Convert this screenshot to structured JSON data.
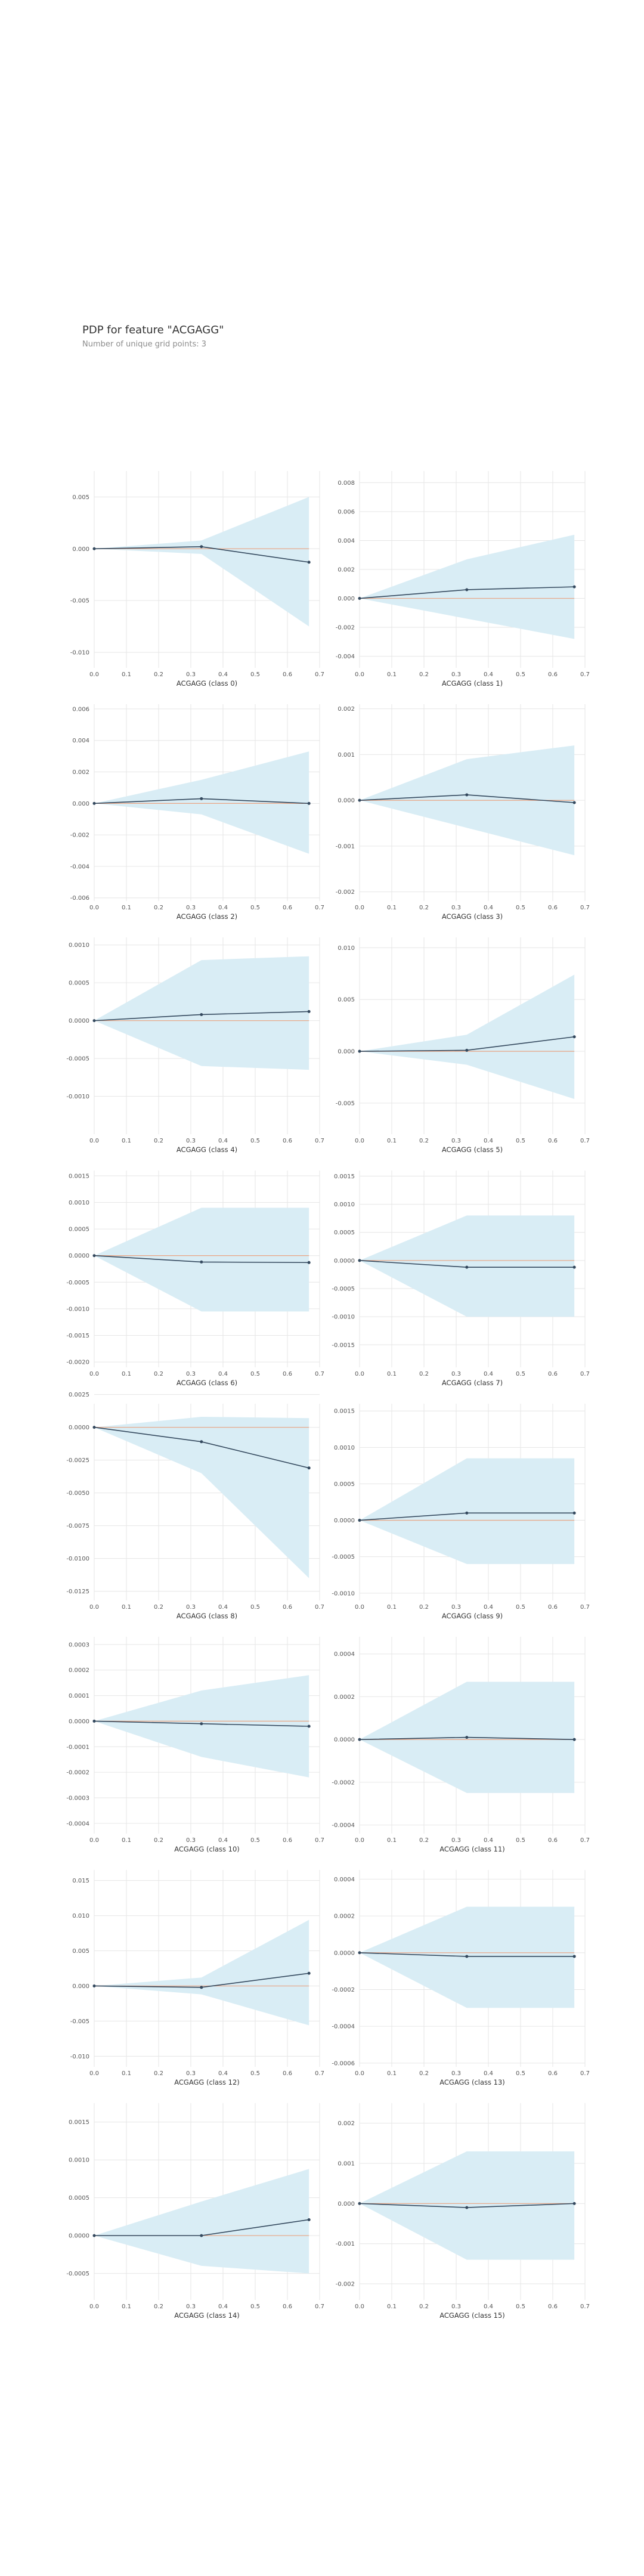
{
  "header": {
    "title": "PDP for feature \"ACGAGG\"",
    "subtitle": "Number of unique grid points: 3"
  },
  "colors": {
    "band": "#d9edf5",
    "line": "#34495e",
    "baseline": "#e8aa8c",
    "grid": "#e6e6e6",
    "tick_text": "#555555",
    "label_text": "#333333"
  },
  "chart_data": [
    {
      "type": "line",
      "xlabel": "ACGAGG (class 0)",
      "x": [
        0,
        0.333,
        0.667
      ],
      "xticks": [
        "0.0",
        "0.1",
        "0.2",
        "0.3",
        "0.4",
        "0.5",
        "0.6",
        "0.7"
      ],
      "xlim": [
        0,
        0.7
      ],
      "ylim": [
        -0.0115,
        0.0075
      ],
      "yticks": [
        -0.01,
        -0.005,
        0,
        0.005
      ],
      "yticklabels": [
        "-0.010",
        "-0.005",
        "0.000",
        "0.005"
      ],
      "series": [
        {
          "values": [
            0,
            0.0002,
            -0.0013
          ],
          "upper": [
            0,
            0.0008,
            0.005
          ],
          "lower": [
            0,
            -0.0005,
            -0.0075
          ]
        }
      ]
    },
    {
      "type": "line",
      "xlabel": "ACGAGG (class 1)",
      "x": [
        0,
        0.333,
        0.667
      ],
      "xticks": [
        "0.0",
        "0.1",
        "0.2",
        "0.3",
        "0.4",
        "0.5",
        "0.6",
        "0.7"
      ],
      "xlim": [
        0,
        0.7
      ],
      "ylim": [
        -0.0048,
        0.0088
      ],
      "yticks": [
        -0.004,
        -0.002,
        0,
        0.002,
        0.004,
        0.006,
        0.008
      ],
      "yticklabels": [
        "-0.004",
        "-0.002",
        "0.000",
        "0.002",
        "0.004",
        "0.006",
        "0.008"
      ],
      "series": [
        {
          "values": [
            0,
            0.0006,
            0.0008
          ],
          "upper": [
            0,
            0.0027,
            0.0044
          ],
          "lower": [
            0,
            -0.0014,
            -0.0028
          ]
        }
      ]
    },
    {
      "type": "line",
      "xlabel": "ACGAGG (class 2)",
      "x": [
        0,
        0.333,
        0.667
      ],
      "xticks": [
        "0.0",
        "0.1",
        "0.2",
        "0.3",
        "0.4",
        "0.5",
        "0.6",
        "0.7"
      ],
      "xlim": [
        0,
        0.7
      ],
      "ylim": [
        -0.0062,
        0.0063
      ],
      "yticks": [
        -0.006,
        -0.004,
        -0.002,
        0,
        0.002,
        0.004,
        0.006
      ],
      "yticklabels": [
        "-0.006",
        "-0.004",
        "-0.002",
        "0.000",
        "0.002",
        "0.004",
        "0.006"
      ],
      "series": [
        {
          "values": [
            0,
            0.0003,
            0
          ],
          "upper": [
            0,
            0.0015,
            0.0033
          ],
          "lower": [
            0,
            -0.0007,
            -0.0032
          ]
        }
      ]
    },
    {
      "type": "line",
      "xlabel": "ACGAGG (class 3)",
      "x": [
        0,
        0.333,
        0.667
      ],
      "xticks": [
        "0.0",
        "0.1",
        "0.2",
        "0.3",
        "0.4",
        "0.5",
        "0.6",
        "0.7"
      ],
      "xlim": [
        0,
        0.7
      ],
      "ylim": [
        -0.0022,
        0.0021
      ],
      "yticks": [
        -0.002,
        -0.001,
        0,
        0.001,
        0.002
      ],
      "yticklabels": [
        "-0.002",
        "-0.001",
        "0.000",
        "0.001",
        "0.002"
      ],
      "series": [
        {
          "values": [
            0,
            0.00012,
            -5e-05
          ],
          "upper": [
            0,
            0.0009,
            0.0012
          ],
          "lower": [
            0,
            -0.0006,
            -0.0012
          ]
        }
      ]
    },
    {
      "type": "line",
      "xlabel": "ACGAGG (class 4)",
      "x": [
        0,
        0.333,
        0.667
      ],
      "xticks": [
        "0.0",
        "0.1",
        "0.2",
        "0.3",
        "0.4",
        "0.5",
        "0.6",
        "0.7"
      ],
      "xlim": [
        0,
        0.7
      ],
      "ylim": [
        -0.0015,
        0.0011
      ],
      "yticks": [
        -0.001,
        -0.0005,
        0,
        0.0005,
        0.001
      ],
      "yticklabels": [
        "-0.0010",
        "-0.0005",
        "0.0000",
        "0.0005",
        "0.0010"
      ],
      "series": [
        {
          "values": [
            0,
            8e-05,
            0.00012
          ],
          "upper": [
            0,
            0.0008,
            0.00085
          ],
          "lower": [
            0,
            -0.0006,
            -0.00065
          ]
        }
      ]
    },
    {
      "type": "line",
      "xlabel": "ACGAGG (class 5)",
      "x": [
        0,
        0.333,
        0.667
      ],
      "xticks": [
        "0.0",
        "0.1",
        "0.2",
        "0.3",
        "0.4",
        "0.5",
        "0.6",
        "0.7"
      ],
      "xlim": [
        0,
        0.7
      ],
      "ylim": [
        -0.008,
        0.011
      ],
      "yticks": [
        -0.005,
        0,
        0.005,
        0.01
      ],
      "yticklabels": [
        "-0.005",
        "0.000",
        "0.005",
        "0.010"
      ],
      "series": [
        {
          "values": [
            0,
            0.0001,
            0.0014
          ],
          "upper": [
            0,
            0.0016,
            0.0074
          ],
          "lower": [
            0,
            -0.0013,
            -0.0046
          ]
        }
      ]
    },
    {
      "type": "line",
      "xlabel": "ACGAGG (class 6)",
      "x": [
        0,
        0.333,
        0.667
      ],
      "xticks": [
        "0.0",
        "0.1",
        "0.2",
        "0.3",
        "0.4",
        "0.5",
        "0.6",
        "0.7"
      ],
      "xlim": [
        0,
        0.7
      ],
      "ylim": [
        -0.0021,
        0.0016
      ],
      "yticks": [
        -0.002,
        -0.0015,
        -0.001,
        -0.0005,
        0,
        0.0005,
        0.001,
        0.0015
      ],
      "yticklabels": [
        "-0.0020",
        "-0.0015",
        "-0.0010",
        "-0.0005",
        "0.0000",
        "0.0005",
        "0.0010",
        "0.0015"
      ],
      "series": [
        {
          "values": [
            0,
            -0.00012,
            -0.00013
          ],
          "upper": [
            0,
            0.0009,
            0.0009
          ],
          "lower": [
            0,
            -0.00105,
            -0.00105
          ]
        }
      ]
    },
    {
      "type": "line",
      "xlabel": "ACGAGG (class 7)",
      "x": [
        0,
        0.333,
        0.667
      ],
      "xticks": [
        "0.0",
        "0.1",
        "0.2",
        "0.3",
        "0.4",
        "0.5",
        "0.6",
        "0.7"
      ],
      "xlim": [
        0,
        0.7
      ],
      "ylim": [
        -0.0019,
        0.0016
      ],
      "yticks": [
        -0.0015,
        -0.001,
        -0.0005,
        0,
        0.0005,
        0.001,
        0.0015
      ],
      "yticklabels": [
        "-0.0015",
        "-0.0010",
        "-0.0005",
        "0.0000",
        "0.0005",
        "0.0010",
        "0.0015"
      ],
      "series": [
        {
          "values": [
            0,
            -0.00012,
            -0.00012
          ],
          "upper": [
            0,
            0.0008,
            0.0008
          ],
          "lower": [
            0,
            -0.001,
            -0.001
          ]
        }
      ]
    },
    {
      "type": "line",
      "xlabel": "ACGAGG (class 8)",
      "x": [
        0,
        0.333,
        0.667
      ],
      "xticks": [
        "0.0",
        "0.1",
        "0.2",
        "0.3",
        "0.4",
        "0.5",
        "0.6",
        "0.7"
      ],
      "xlim": [
        0,
        0.7
      ],
      "ylim": [
        -0.0132,
        0.0018
      ],
      "yticks": [
        -0.0125,
        -0.01,
        -0.0075,
        -0.005,
        -0.0025,
        0,
        0.0025
      ],
      "yticklabels": [
        "-0.0125",
        "-0.0100",
        "-0.0075",
        "-0.0050",
        "-0.0025",
        "0.0000",
        "0.0025"
      ],
      "series": [
        {
          "values": [
            0,
            -0.0011,
            -0.0031
          ],
          "upper": [
            0,
            0.0008,
            0.0007
          ],
          "lower": [
            0,
            -0.0035,
            -0.0115
          ]
        }
      ]
    },
    {
      "type": "line",
      "xlabel": "ACGAGG (class 9)",
      "x": [
        0,
        0.333,
        0.667
      ],
      "xticks": [
        "0.0",
        "0.1",
        "0.2",
        "0.3",
        "0.4",
        "0.5",
        "0.6",
        "0.7"
      ],
      "xlim": [
        0,
        0.7
      ],
      "ylim": [
        -0.0011,
        0.0016
      ],
      "yticks": [
        -0.001,
        -0.0005,
        0,
        0.0005,
        0.001,
        0.0015
      ],
      "yticklabels": [
        "-0.0010",
        "-0.0005",
        "0.0000",
        "0.0005",
        "0.0010",
        "0.0015"
      ],
      "series": [
        {
          "values": [
            0,
            0.0001,
            0.0001
          ],
          "upper": [
            0,
            0.00085,
            0.00085
          ],
          "lower": [
            0,
            -0.0006,
            -0.0006
          ]
        }
      ]
    },
    {
      "type": "line",
      "xlabel": "ACGAGG (class 10)",
      "x": [
        0,
        0.333,
        0.667
      ],
      "xticks": [
        "0.0",
        "0.1",
        "0.2",
        "0.3",
        "0.4",
        "0.5",
        "0.6",
        "0.7"
      ],
      "xlim": [
        0,
        0.7
      ],
      "ylim": [
        -0.00044,
        0.00033
      ],
      "yticks": [
        -0.0004,
        -0.0003,
        -0.0002,
        -0.0001,
        0,
        0.0001,
        0.0002,
        0.0003
      ],
      "yticklabels": [
        "-0.0004",
        "-0.0003",
        "-0.0002",
        "-0.0001",
        "0.0000",
        "0.0001",
        "0.0002",
        "0.0003"
      ],
      "series": [
        {
          "values": [
            0,
            -1e-05,
            -2e-05
          ],
          "upper": [
            0,
            0.00012,
            0.00018
          ],
          "lower": [
            0,
            -0.00014,
            -0.00022
          ]
        }
      ]
    },
    {
      "type": "line",
      "xlabel": "ACGAGG (class 11)",
      "x": [
        0,
        0.333,
        0.667
      ],
      "xticks": [
        "0.0",
        "0.1",
        "0.2",
        "0.3",
        "0.4",
        "0.5",
        "0.6",
        "0.7"
      ],
      "xlim": [
        0,
        0.7
      ],
      "ylim": [
        -0.00044,
        0.00048
      ],
      "yticks": [
        -0.0004,
        -0.0002,
        0,
        0.0002,
        0.0004
      ],
      "yticklabels": [
        "-0.0004",
        "-0.0002",
        "0.0000",
        "0.0002",
        "0.0004"
      ],
      "series": [
        {
          "values": [
            0,
            1e-05,
            0
          ],
          "upper": [
            0,
            0.00027,
            0.00027
          ],
          "lower": [
            0,
            -0.00025,
            -0.00025
          ]
        }
      ]
    },
    {
      "type": "line",
      "xlabel": "ACGAGG (class 12)",
      "x": [
        0,
        0.333,
        0.667
      ],
      "xticks": [
        "0.0",
        "0.1",
        "0.2",
        "0.3",
        "0.4",
        "0.5",
        "0.6",
        "0.7"
      ],
      "xlim": [
        0,
        0.7
      ],
      "ylim": [
        -0.0115,
        0.0165
      ],
      "yticks": [
        -0.01,
        -0.005,
        0,
        0.005,
        0.01,
        0.015
      ],
      "yticklabels": [
        "-0.010",
        "-0.005",
        "0.000",
        "0.005",
        "0.010",
        "0.015"
      ],
      "series": [
        {
          "values": [
            0,
            -0.0002,
            0.0018
          ],
          "upper": [
            0,
            0.0012,
            0.0094
          ],
          "lower": [
            0,
            -0.0012,
            -0.0056
          ]
        }
      ]
    },
    {
      "type": "line",
      "xlabel": "ACGAGG (class 13)",
      "x": [
        0,
        0.333,
        0.667
      ],
      "xticks": [
        "0.0",
        "0.1",
        "0.2",
        "0.3",
        "0.4",
        "0.5",
        "0.6",
        "0.7"
      ],
      "xlim": [
        0,
        0.7
      ],
      "ylim": [
        -0.00062,
        0.00045
      ],
      "yticks": [
        -0.0006,
        -0.0004,
        -0.0002,
        0,
        0.0002,
        0.0004
      ],
      "yticklabels": [
        "-0.0006",
        "-0.0004",
        "-0.0002",
        "0.0000",
        "0.0002",
        "0.0004"
      ],
      "series": [
        {
          "values": [
            0,
            -2e-05,
            -2e-05
          ],
          "upper": [
            0,
            0.00025,
            0.00025
          ],
          "lower": [
            0,
            -0.0003,
            -0.0003
          ]
        }
      ]
    },
    {
      "type": "line",
      "xlabel": "ACGAGG (class 14)",
      "x": [
        0,
        0.333,
        0.667
      ],
      "xticks": [
        "0.0",
        "0.1",
        "0.2",
        "0.3",
        "0.4",
        "0.5",
        "0.6",
        "0.7"
      ],
      "xlim": [
        0,
        0.7
      ],
      "ylim": [
        -0.00085,
        0.00175
      ],
      "yticks": [
        -0.0005,
        0,
        0.0005,
        0.001,
        0.0015
      ],
      "yticklabels": [
        "-0.0005",
        "0.0000",
        "0.0005",
        "0.0010",
        "0.0015"
      ],
      "series": [
        {
          "values": [
            0,
            0,
            0.00021
          ],
          "upper": [
            0,
            0.00045,
            0.00088
          ],
          "lower": [
            0,
            -0.0004,
            -0.0005
          ]
        }
      ]
    },
    {
      "type": "line",
      "xlabel": "ACGAGG (class 15)",
      "x": [
        0,
        0.333,
        0.667
      ],
      "xticks": [
        "0.0",
        "0.1",
        "0.2",
        "0.3",
        "0.4",
        "0.5",
        "0.6",
        "0.7"
      ],
      "xlim": [
        0,
        0.7
      ],
      "ylim": [
        -0.0024,
        0.0025
      ],
      "yticks": [
        -0.002,
        -0.001,
        0,
        0.001,
        0.002
      ],
      "yticklabels": [
        "-0.002",
        "-0.001",
        "0.000",
        "0.001",
        "0.002"
      ],
      "series": [
        {
          "values": [
            0,
            -0.0001,
            0
          ],
          "upper": [
            0,
            0.0013,
            0.0013
          ],
          "lower": [
            0,
            -0.0014,
            -0.0014
          ]
        }
      ]
    }
  ]
}
